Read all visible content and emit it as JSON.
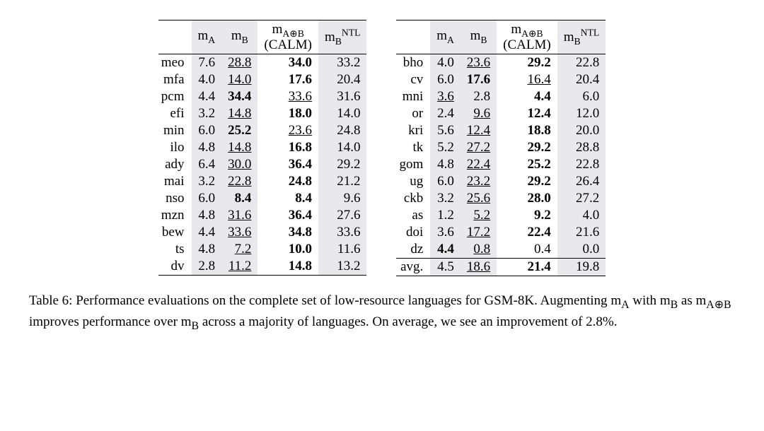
{
  "headers": {
    "mA_html": "m<span class='sub'>A</span>",
    "mB_html": "m<span class='sub'>B</span>",
    "calm_top_html": "m<span class='sub'>A⊕B</span>",
    "calm_bottom": "(CALM)",
    "ntl_html": "m<span class='sub'>B</span><span class='sup'>NTL</span>"
  },
  "shade_color": "#e7e9ed",
  "left": [
    {
      "lang": "meo",
      "mA": {
        "v": "7.6"
      },
      "mB": {
        "v": "28.8",
        "u": true
      },
      "calm": {
        "v": "34.0",
        "b": true
      },
      "ntl": {
        "v": "33.2"
      }
    },
    {
      "lang": "mfa",
      "mA": {
        "v": "4.0"
      },
      "mB": {
        "v": "14.0",
        "u": true
      },
      "calm": {
        "v": "17.6",
        "b": true
      },
      "ntl": {
        "v": "20.4"
      }
    },
    {
      "lang": "pcm",
      "mA": {
        "v": "4.4"
      },
      "mB": {
        "v": "34.4",
        "b": true
      },
      "calm": {
        "v": "33.6",
        "u": true
      },
      "ntl": {
        "v": "31.6"
      }
    },
    {
      "lang": "efi",
      "mA": {
        "v": "3.2"
      },
      "mB": {
        "v": "14.8",
        "u": true
      },
      "calm": {
        "v": "18.0",
        "b": true
      },
      "ntl": {
        "v": "14.0"
      }
    },
    {
      "lang": "min",
      "mA": {
        "v": "6.0"
      },
      "mB": {
        "v": "25.2",
        "b": true
      },
      "calm": {
        "v": "23.6",
        "u": true
      },
      "ntl": {
        "v": "24.8"
      }
    },
    {
      "lang": "ilo",
      "mA": {
        "v": "4.8"
      },
      "mB": {
        "v": "14.8",
        "u": true
      },
      "calm": {
        "v": "16.8",
        "b": true
      },
      "ntl": {
        "v": "14.0"
      }
    },
    {
      "lang": "ady",
      "mA": {
        "v": "6.4"
      },
      "mB": {
        "v": "30.0",
        "u": true
      },
      "calm": {
        "v": "36.4",
        "b": true
      },
      "ntl": {
        "v": "29.2"
      }
    },
    {
      "lang": "mai",
      "mA": {
        "v": "3.2"
      },
      "mB": {
        "v": "22.8",
        "u": true
      },
      "calm": {
        "v": "24.8",
        "b": true
      },
      "ntl": {
        "v": "21.2"
      }
    },
    {
      "lang": "nso",
      "mA": {
        "v": "6.0"
      },
      "mB": {
        "v": "8.4",
        "b": true
      },
      "calm": {
        "v": "8.4",
        "b": true
      },
      "ntl": {
        "v": "9.6"
      }
    },
    {
      "lang": "mzn",
      "mA": {
        "v": "4.8"
      },
      "mB": {
        "v": "31.6",
        "u": true
      },
      "calm": {
        "v": "36.4",
        "b": true
      },
      "ntl": {
        "v": "27.6"
      }
    },
    {
      "lang": "bew",
      "mA": {
        "v": "4.4"
      },
      "mB": {
        "v": "33.6",
        "u": true
      },
      "calm": {
        "v": "34.8",
        "b": true
      },
      "ntl": {
        "v": "33.6"
      }
    },
    {
      "lang": "ts",
      "mA": {
        "v": "4.8"
      },
      "mB": {
        "v": "7.2",
        "u": true
      },
      "calm": {
        "v": "10.0",
        "b": true
      },
      "ntl": {
        "v": "11.6"
      }
    },
    {
      "lang": "dv",
      "mA": {
        "v": "2.8"
      },
      "mB": {
        "v": "11.2",
        "u": true
      },
      "calm": {
        "v": "14.8",
        "b": true
      },
      "ntl": {
        "v": "13.2"
      }
    }
  ],
  "right": [
    {
      "lang": "bho",
      "mA": {
        "v": "4.0"
      },
      "mB": {
        "v": "23.6",
        "u": true
      },
      "calm": {
        "v": "29.2",
        "b": true
      },
      "ntl": {
        "v": "22.8"
      }
    },
    {
      "lang": "cv",
      "mA": {
        "v": "6.0"
      },
      "mB": {
        "v": "17.6",
        "b": true
      },
      "calm": {
        "v": "16.4",
        "u": true
      },
      "ntl": {
        "v": "20.4"
      }
    },
    {
      "lang": "mni",
      "mA": {
        "v": "3.6",
        "u": true
      },
      "mB": {
        "v": "2.8"
      },
      "calm": {
        "v": "4.4",
        "b": true
      },
      "ntl": {
        "v": "6.0"
      }
    },
    {
      "lang": "or",
      "mA": {
        "v": "2.4"
      },
      "mB": {
        "v": "9.6",
        "u": true
      },
      "calm": {
        "v": "12.4",
        "b": true
      },
      "ntl": {
        "v": "12.0"
      }
    },
    {
      "lang": "kri",
      "mA": {
        "v": "5.6"
      },
      "mB": {
        "v": "12.4",
        "u": true
      },
      "calm": {
        "v": "18.8",
        "b": true
      },
      "ntl": {
        "v": "20.0"
      }
    },
    {
      "lang": "tk",
      "mA": {
        "v": "5.2"
      },
      "mB": {
        "v": "27.2",
        "u": true
      },
      "calm": {
        "v": "29.2",
        "b": true
      },
      "ntl": {
        "v": "28.8"
      }
    },
    {
      "lang": "gom",
      "mA": {
        "v": "4.8"
      },
      "mB": {
        "v": "22.4",
        "u": true
      },
      "calm": {
        "v": "25.2",
        "b": true
      },
      "ntl": {
        "v": "22.8"
      }
    },
    {
      "lang": "ug",
      "mA": {
        "v": "6.0"
      },
      "mB": {
        "v": "23.2",
        "u": true
      },
      "calm": {
        "v": "29.2",
        "b": true
      },
      "ntl": {
        "v": "26.4"
      }
    },
    {
      "lang": "ckb",
      "mA": {
        "v": "3.2"
      },
      "mB": {
        "v": "25.6",
        "u": true
      },
      "calm": {
        "v": "28.0",
        "b": true
      },
      "ntl": {
        "v": "27.2"
      }
    },
    {
      "lang": "as",
      "mA": {
        "v": "1.2"
      },
      "mB": {
        "v": "5.2",
        "u": true
      },
      "calm": {
        "v": "9.2",
        "b": true
      },
      "ntl": {
        "v": "4.0"
      }
    },
    {
      "lang": "doi",
      "mA": {
        "v": "3.6"
      },
      "mB": {
        "v": "17.2",
        "u": true
      },
      "calm": {
        "v": "22.4",
        "b": true
      },
      "ntl": {
        "v": "21.6"
      }
    },
    {
      "lang": "dz",
      "mA": {
        "v": "4.4",
        "b": true
      },
      "mB": {
        "v": "0.8",
        "u": true
      },
      "calm": {
        "v": "0.4"
      },
      "ntl": {
        "v": "0.0"
      }
    }
  ],
  "avg": {
    "lang": "avg.",
    "mA": {
      "v": "4.5"
    },
    "mB": {
      "v": "18.6",
      "u": true
    },
    "calm": {
      "v": "21.4",
      "b": true
    },
    "ntl": {
      "v": "19.8"
    }
  },
  "caption_html": "Table 6:  Performance evaluations on the complete set of low-resource languages for GSM-8K. Augmenting <span class='math-token'>m<sub>A</sub></span> with <span class='math-token'>m<sub>B</sub></span> as <span class='math-token'>m<sub>A⊕B</sub></span> improves performance over <span class='math-token'>m<sub>B</sub></span> across a majority of languages. On average, we see an improvement of 2.8%."
}
